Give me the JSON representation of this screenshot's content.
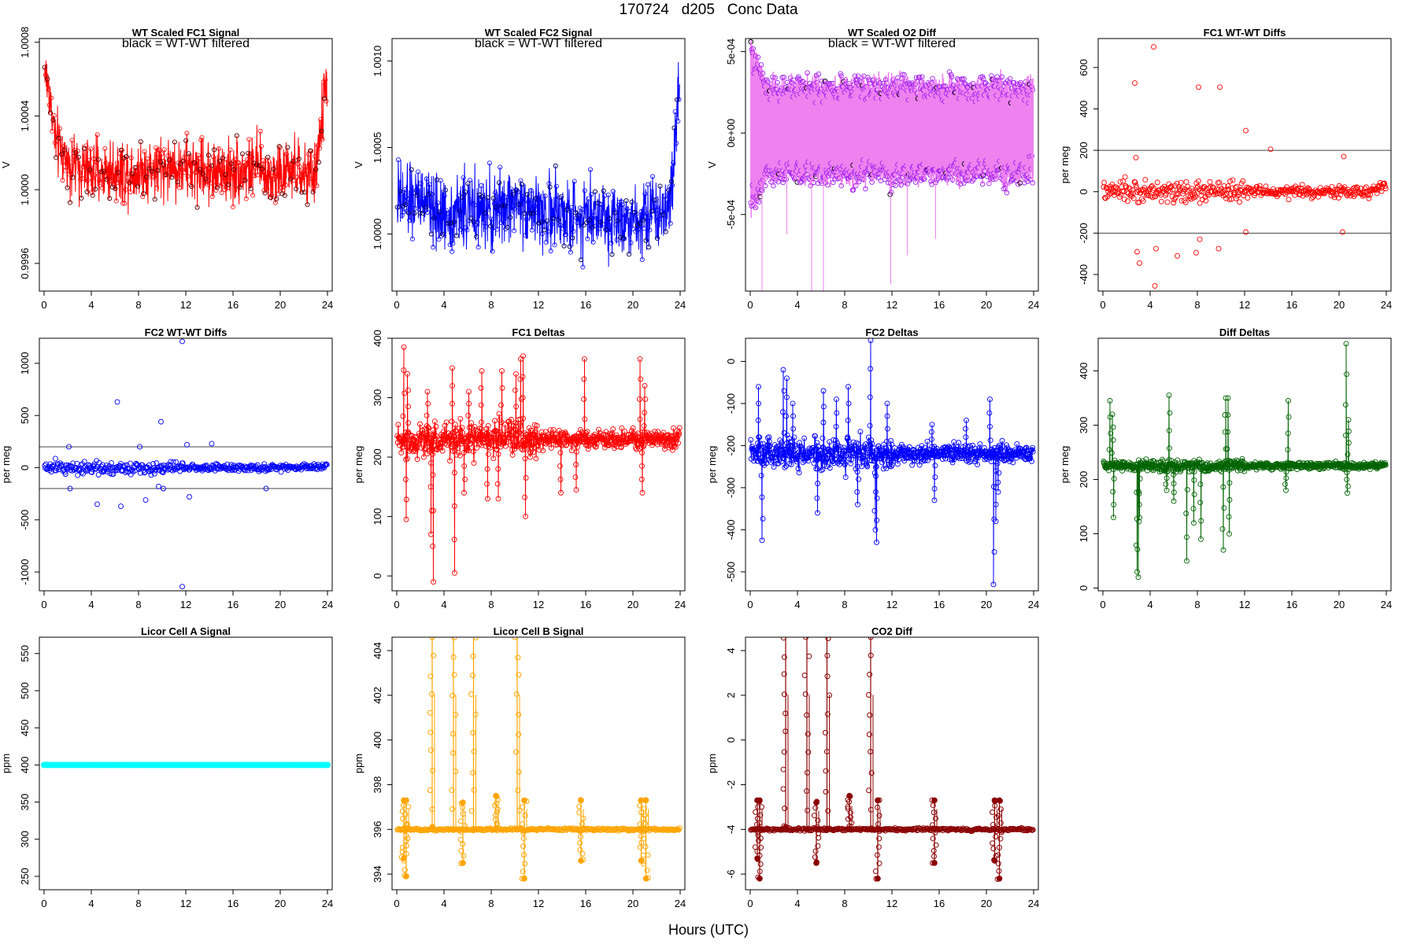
{
  "figure": {
    "title": "170724   d205   Conc Data",
    "xlabel": "Hours (UTC)"
  },
  "chart_data": [
    {
      "id": "p1",
      "type": "line",
      "title": "WT Scaled FC1 Signal",
      "annotation": "black = WT-WT filtered",
      "ylabel": "V",
      "xlim": [
        0,
        24
      ],
      "ylim": [
        0.99945,
        1.00082
      ],
      "xticks": [
        0,
        4,
        8,
        12,
        16,
        20,
        24
      ],
      "yticks": [
        0.9996,
        1.0,
        1.0004,
        1.0008
      ],
      "ytick_labels": [
        "0.9996",
        "1.0000",
        "1.0004",
        "1.0008"
      ],
      "color": "#ff0000",
      "filtered_color": "#000000",
      "baseline_profile": {
        "x": [
          0,
          0.5,
          1,
          2,
          3,
          4,
          6,
          8,
          10,
          12,
          14,
          16,
          18,
          19,
          20,
          21,
          22,
          22.8,
          23.3,
          23.7,
          24
        ],
        "y": [
          1.00068,
          1.0005,
          1.00025,
          1.00015,
          1.00012,
          1.0001,
          1.0001,
          1.0001,
          1.00012,
          1.00012,
          1.0001,
          1.0001,
          1.00012,
          1.00008,
          1.00008,
          1.0001,
          1.00008,
          1.00005,
          1.00025,
          1.00048,
          1.00065
        ]
      },
      "noise_amplitude": 0.00012
    },
    {
      "id": "p2",
      "type": "line",
      "title": "WT Scaled FC2 Signal",
      "annotation": "black = WT-WT filtered",
      "ylabel": "V",
      "xlim": [
        0,
        24
      ],
      "ylim": [
        0.99967,
        1.00113
      ],
      "xticks": [
        0,
        4,
        8,
        12,
        16,
        20,
        24
      ],
      "yticks": [
        1.0,
        1.0005,
        1.001
      ],
      "ytick_labels": [
        "1.0000",
        "1.0005",
        "1.0010"
      ],
      "color": "#0000ff",
      "filtered_color": "#000000",
      "baseline_profile": {
        "x": [
          0,
          2,
          4,
          6,
          8,
          10,
          12,
          14,
          16,
          18,
          20,
          22,
          23,
          23.5,
          24
        ],
        "y": [
          1.00018,
          1.0002,
          1.0001,
          1.00015,
          1.0001,
          1.0002,
          1.00012,
          1.0001,
          1.00012,
          1.0001,
          1.0001,
          1.00012,
          1.00015,
          1.0005,
          1.00093
        ]
      },
      "noise_amplitude": 0.00015
    },
    {
      "id": "p3",
      "type": "line",
      "title": "WT Scaled O2 Diff",
      "annotation": "black = WT-WT filtered",
      "ylabel": "V",
      "xlim": [
        0,
        24
      ],
      "ylim": [
        -0.00097,
        0.00058
      ],
      "xticks": [
        0,
        4,
        8,
        12,
        16,
        20,
        24
      ],
      "yticks": [
        -0.0005,
        0,
        0.0005
      ],
      "ytick_labels": [
        "-5e-04",
        "0e+00",
        "5e-04"
      ],
      "color": "#ee82ee",
      "point_color": "#a020f0",
      "filtered_color": "#000000",
      "envelope": {
        "upper": 0.00028,
        "lower": -0.00025,
        "start_upper": 0.00052,
        "start_lower": -0.00045
      }
    },
    {
      "id": "p4",
      "type": "scatter",
      "title": "FC1 WT-WT Diffs",
      "ylabel": "per meg",
      "xlim": [
        0,
        24
      ],
      "ylim": [
        -480,
        740
      ],
      "xticks": [
        0,
        4,
        8,
        12,
        16,
        20,
        24
      ],
      "yticks": [
        -400,
        -200,
        0,
        200,
        400,
        600
      ],
      "ytick_labels": [
        "-400",
        "-200",
        "0",
        "200",
        "400",
        "600"
      ],
      "color": "#ff0000",
      "hlines": [
        200,
        -200
      ],
      "spread": 40,
      "outliers": [
        [
          4.3,
          700
        ],
        [
          2.7,
          525
        ],
        [
          8.1,
          505
        ],
        [
          9.9,
          505
        ],
        [
          12.1,
          295
        ],
        [
          14.2,
          205
        ],
        [
          20.4,
          170
        ],
        [
          2.8,
          165
        ],
        [
          3.1,
          -345
        ],
        [
          2.9,
          -290
        ],
        [
          4.4,
          -455
        ],
        [
          4.5,
          -275
        ],
        [
          6.3,
          -310
        ],
        [
          8.2,
          -230
        ],
        [
          7.9,
          -295
        ],
        [
          9.8,
          -275
        ],
        [
          12.1,
          -195
        ],
        [
          20.3,
          -195
        ]
      ]
    },
    {
      "id": "p5",
      "type": "scatter",
      "title": "FC2 WT-WT Diffs",
      "ylabel": "per meg",
      "xlim": [
        0,
        24
      ],
      "ylim": [
        -1180,
        1240
      ],
      "xticks": [
        0,
        4,
        8,
        12,
        16,
        20,
        24
      ],
      "yticks": [
        -1000,
        -500,
        0,
        500,
        1000
      ],
      "ytick_labels": [
        "-1000",
        "-500",
        "0",
        "500",
        "1000"
      ],
      "color": "#0000ff",
      "hlines": [
        200,
        -200
      ],
      "spread": 50,
      "outliers": [
        [
          11.7,
          1210
        ],
        [
          11.7,
          -1140
        ],
        [
          6.2,
          630
        ],
        [
          9.9,
          440
        ],
        [
          12.1,
          220
        ],
        [
          14.2,
          230
        ],
        [
          2.1,
          200
        ],
        [
          2.2,
          -200
        ],
        [
          4.5,
          -350
        ],
        [
          6.5,
          -370
        ],
        [
          8.6,
          -310
        ],
        [
          10.1,
          -200
        ],
        [
          12.3,
          -280
        ],
        [
          18.8,
          -200
        ],
        [
          8.1,
          200
        ],
        [
          9.7,
          -180
        ]
      ]
    },
    {
      "id": "p6",
      "type": "line",
      "title": "FC1 Deltas",
      "ylabel": "per meg",
      "xlim": [
        0,
        24
      ],
      "ylim": [
        -25,
        400
      ],
      "xticks": [
        0,
        4,
        8,
        12,
        16,
        20,
        24
      ],
      "yticks": [
        0,
        100,
        200,
        300,
        400
      ],
      "ytick_labels": [
        "0",
        "100",
        "200",
        "300",
        "400"
      ],
      "color": "#ff0000",
      "baseline": 230,
      "noise": 22,
      "spikes": [
        [
          0.6,
          385
        ],
        [
          0.9,
          340
        ],
        [
          0.8,
          95
        ],
        [
          2.6,
          310
        ],
        [
          2.9,
          70
        ],
        [
          3.1,
          -10
        ],
        [
          4.7,
          350
        ],
        [
          4.9,
          5
        ],
        [
          6.1,
          310
        ],
        [
          5.7,
          140
        ],
        [
          7.2,
          345
        ],
        [
          7.7,
          130
        ],
        [
          8.6,
          130
        ],
        [
          8.9,
          345
        ],
        [
          10.1,
          340
        ],
        [
          10.5,
          365
        ],
        [
          10.7,
          370
        ],
        [
          10.9,
          100
        ],
        [
          11.3,
          200
        ],
        [
          13.9,
          140
        ],
        [
          15.9,
          365
        ],
        [
          15.2,
          145
        ],
        [
          20.6,
          365
        ],
        [
          21.0,
          320
        ],
        [
          20.8,
          140
        ]
      ]
    },
    {
      "id": "p7",
      "type": "line",
      "title": "FC2 Deltas",
      "ylabel": "per meg",
      "xlim": [
        0,
        24
      ],
      "ylim": [
        -545,
        55
      ],
      "xticks": [
        0,
        4,
        8,
        12,
        16,
        20,
        24
      ],
      "yticks": [
        -500,
        -400,
        -300,
        -200,
        -100,
        0
      ],
      "ytick_labels": [
        "-500",
        "-400",
        "-300",
        "-200",
        "-100",
        "0"
      ],
      "color": "#0000ff",
      "baseline": -220,
      "noise": 28,
      "spikes": [
        [
          0.7,
          -60
        ],
        [
          1.0,
          -425
        ],
        [
          1.6,
          -180
        ],
        [
          2.8,
          -20
        ],
        [
          3.1,
          -40
        ],
        [
          3.6,
          -100
        ],
        [
          5.7,
          -360
        ],
        [
          6.2,
          -70
        ],
        [
          7.3,
          -90
        ],
        [
          8.3,
          -60
        ],
        [
          9.1,
          -340
        ],
        [
          10.2,
          50
        ],
        [
          10.7,
          -430
        ],
        [
          10.6,
          -400
        ],
        [
          11.6,
          -100
        ],
        [
          15.4,
          -150
        ],
        [
          15.6,
          -330
        ],
        [
          18.3,
          -140
        ],
        [
          20.3,
          -90
        ],
        [
          20.6,
          -530
        ],
        [
          20.8,
          -380
        ],
        [
          21.0,
          -310
        ]
      ]
    },
    {
      "id": "p8",
      "type": "line",
      "title": "Diff Deltas",
      "ylabel": "per meg",
      "xlim": [
        0,
        24
      ],
      "ylim": [
        -5,
        460
      ],
      "xticks": [
        0,
        4,
        8,
        12,
        16,
        20,
        24
      ],
      "yticks": [
        0,
        100,
        200,
        300,
        400
      ],
      "ytick_labels": [
        "0",
        "100",
        "200",
        "300",
        "400"
      ],
      "color": "#006400",
      "baseline": 225,
      "noise": 8,
      "spikes": [
        [
          0.6,
          345
        ],
        [
          0.8,
          320
        ],
        [
          0.9,
          130
        ],
        [
          2.9,
          30
        ],
        [
          3.0,
          20
        ],
        [
          3.1,
          130
        ],
        [
          5.6,
          355
        ],
        [
          5.4,
          180
        ],
        [
          6.0,
          160
        ],
        [
          7.1,
          50
        ],
        [
          7.7,
          120
        ],
        [
          8.3,
          90
        ],
        [
          10.4,
          350
        ],
        [
          10.6,
          350
        ],
        [
          10.2,
          70
        ],
        [
          10.7,
          100
        ],
        [
          15.7,
          345
        ],
        [
          15.5,
          180
        ],
        [
          20.6,
          450
        ],
        [
          20.8,
          310
        ],
        [
          20.7,
          175
        ]
      ]
    },
    {
      "id": "p9",
      "type": "line",
      "title": "Licor Cell A Signal",
      "ylabel": "ppm",
      "xlim": [
        0,
        24
      ],
      "ylim": [
        232,
        572
      ],
      "xticks": [
        0,
        4,
        8,
        12,
        16,
        20,
        24
      ],
      "yticks": [
        250,
        300,
        350,
        400,
        450,
        500,
        550
      ],
      "ytick_labels": [
        "250",
        "300",
        "350",
        "400",
        "450",
        "500",
        "550"
      ],
      "color": "#00ffff",
      "constant": 400
    },
    {
      "id": "p10",
      "type": "line",
      "title": "Licor Cell B Signal",
      "ylabel": "ppm",
      "xlim": [
        0,
        24
      ],
      "ylim": [
        393.3,
        404.6
      ],
      "xticks": [
        0,
        4,
        8,
        12,
        16,
        20,
        24
      ],
      "yticks": [
        394,
        396,
        398,
        400,
        402,
        404
      ],
      "ytick_labels": [
        "394",
        "396",
        "398",
        "400",
        "402",
        "404"
      ],
      "color": "#ffa500",
      "baseline": 396.0,
      "events": [
        [
          0.6,
          397.3,
          394.7
        ],
        [
          0.8,
          397.3,
          393.9
        ],
        [
          3.0,
          404.6,
          396.1
        ],
        [
          4.8,
          404.6,
          396.0
        ],
        [
          5.6,
          397.2,
          394.5
        ],
        [
          6.5,
          404.6,
          396.0
        ],
        [
          8.4,
          397.5,
          396.0
        ],
        [
          10.2,
          404.6,
          396.0
        ],
        [
          10.8,
          397.3,
          393.8
        ],
        [
          15.6,
          397.3,
          394.6
        ],
        [
          20.7,
          397.3,
          394.6
        ],
        [
          21.1,
          397.3,
          393.8
        ]
      ]
    },
    {
      "id": "p11",
      "type": "line",
      "title": "CO2 Diff",
      "ylabel": "ppm",
      "xlim": [
        0,
        24
      ],
      "ylim": [
        -6.7,
        4.6
      ],
      "xticks": [
        0,
        4,
        8,
        12,
        16,
        20,
        24
      ],
      "yticks": [
        -6,
        -4,
        -2,
        0,
        2,
        4
      ],
      "ytick_labels": [
        "-6",
        "-4",
        "-2",
        "0",
        "2",
        "4"
      ],
      "color": "#8b0000",
      "baseline": -4.0,
      "events": [
        [
          0.6,
          -2.7,
          -5.3
        ],
        [
          0.8,
          -2.7,
          -6.2
        ],
        [
          3.0,
          4.6,
          -3.9
        ],
        [
          4.8,
          4.6,
          -4.0
        ],
        [
          5.6,
          -2.8,
          -5.5
        ],
        [
          6.5,
          4.6,
          -4.0
        ],
        [
          8.4,
          -2.5,
          -4.0
        ],
        [
          10.2,
          4.6,
          -4.0
        ],
        [
          10.8,
          -2.7,
          -6.2
        ],
        [
          15.6,
          -2.7,
          -5.5
        ],
        [
          20.7,
          -2.7,
          -5.4
        ],
        [
          21.1,
          -2.7,
          -6.2
        ]
      ]
    }
  ]
}
